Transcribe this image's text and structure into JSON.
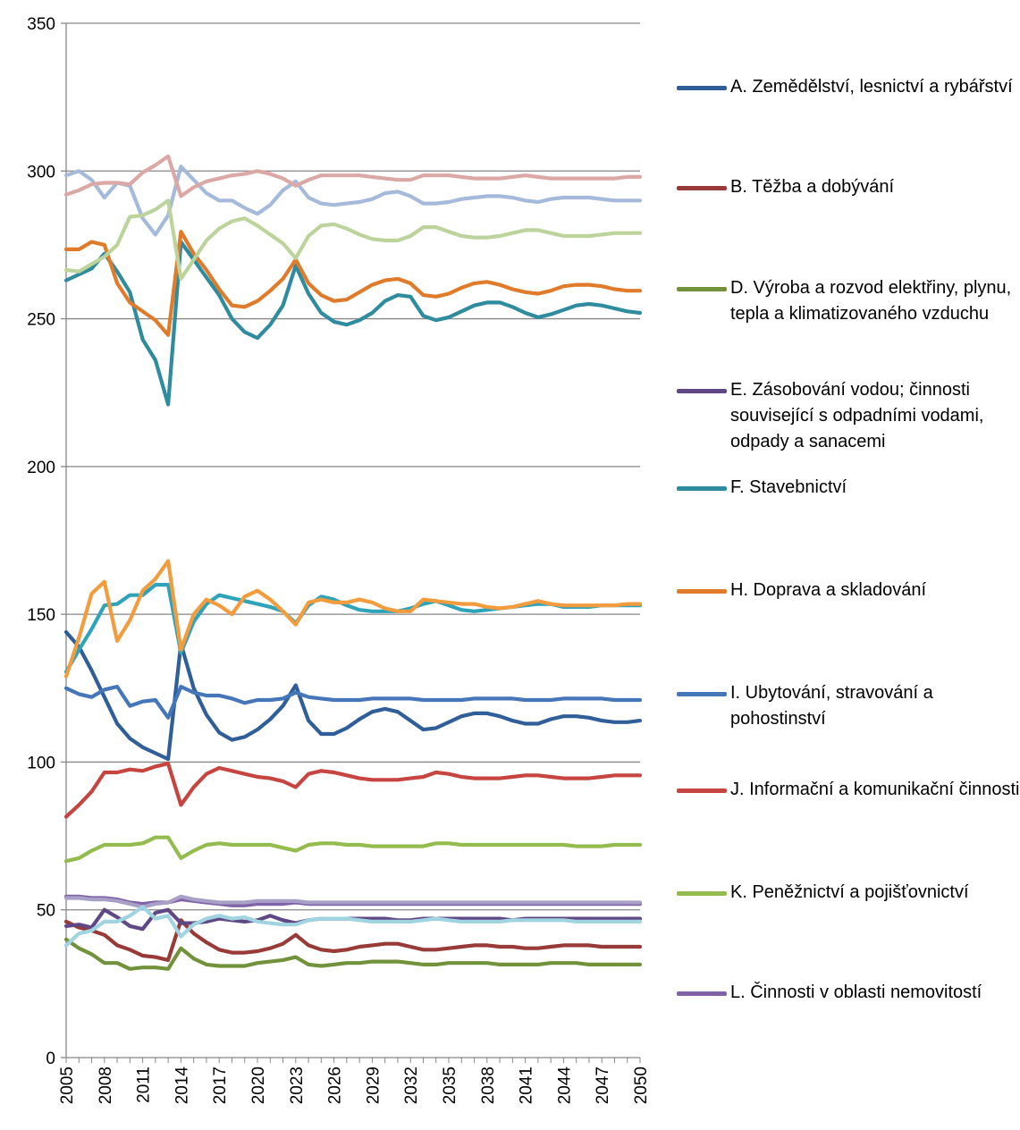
{
  "chart_data": {
    "type": "line",
    "title": "",
    "xlabel": "",
    "ylabel": "",
    "ylim": [
      0,
      350
    ],
    "yticks": [
      0,
      50,
      100,
      150,
      200,
      250,
      300,
      350
    ],
    "x": [
      2005,
      2006,
      2007,
      2008,
      2009,
      2010,
      2011,
      2012,
      2013,
      2014,
      2015,
      2016,
      2017,
      2018,
      2019,
      2020,
      2021,
      2022,
      2023,
      2024,
      2025,
      2026,
      2027,
      2028,
      2029,
      2030,
      2031,
      2032,
      2033,
      2034,
      2035,
      2036,
      2037,
      2038,
      2039,
      2040,
      2041,
      2042,
      2043,
      2044,
      2045,
      2046,
      2047,
      2048,
      2049,
      2050
    ],
    "xtick_labels": [
      2005,
      2008,
      2011,
      2014,
      2017,
      2020,
      2023,
      2026,
      2029,
      2032,
      2035,
      2038,
      2041,
      2044,
      2047,
      2050
    ],
    "grid": "horizontal",
    "legend_position": "right",
    "series": [
      {
        "name": "A. Zemědělství, lesnictví a rybářství",
        "color": "#2f5e98",
        "values": [
          144,
          139,
          131,
          122,
          113,
          108,
          105,
          103,
          101,
          140,
          125,
          116,
          110,
          107.5,
          108.5,
          111,
          114.5,
          119,
          126,
          114,
          109.5,
          109.5,
          111.5,
          114.5,
          117,
          118,
          117,
          114,
          111,
          111.5,
          113.5,
          115.5,
          116.5,
          116.5,
          115.5,
          114,
          113,
          113,
          114.5,
          115.5,
          115.5,
          115,
          114,
          113.5,
          113.5,
          114
        ]
      },
      {
        "name": "B. Těžba a dobývání",
        "color": "#983b38",
        "values": [
          46,
          44,
          43,
          41.5,
          38,
          36.5,
          34.5,
          34,
          33,
          46.5,
          42,
          39,
          36.5,
          35.5,
          35.5,
          36,
          37,
          38.5,
          41.5,
          38,
          36.5,
          36,
          36.5,
          37.5,
          38,
          38.5,
          38.5,
          37.5,
          36.5,
          36.5,
          37,
          37.5,
          38,
          38,
          37.5,
          37.5,
          37,
          37,
          37.5,
          38,
          38,
          38,
          37.5,
          37.5,
          37.5,
          37.5
        ]
      },
      {
        "name": "D. Výroba a rozvod elektřiny, plynu, tepla a klimatizovaného vzduchu",
        "color": "#71923b",
        "values": [
          40,
          37,
          35,
          32,
          32,
          30,
          30.5,
          30.5,
          30,
          37,
          33.5,
          31.5,
          31,
          31,
          31,
          32,
          32.5,
          33,
          34,
          31.5,
          31,
          31.5,
          32,
          32,
          32.5,
          32.5,
          32.5,
          32,
          31.5,
          31.5,
          32,
          32,
          32,
          32,
          31.5,
          31.5,
          31.5,
          31.5,
          32,
          32,
          32,
          31.5,
          31.5,
          31.5,
          31.5,
          31.5
        ]
      },
      {
        "name": "E. Zásobování vodou; činnosti související s odpadními vodami, odpady a sanacemi",
        "color": "#5f4885",
        "values": [
          44.5,
          45,
          44,
          50,
          47.5,
          44.5,
          43.5,
          49,
          50,
          45.5,
          45.5,
          46,
          47,
          46.5,
          46,
          46.5,
          48,
          46.5,
          45.5,
          46.5,
          47,
          47,
          47,
          47,
          47,
          47,
          46.5,
          46.5,
          47,
          47,
          47,
          47,
          47,
          47,
          47,
          46.5,
          47,
          47,
          47,
          47,
          47,
          47,
          47,
          47,
          47,
          47
        ]
      },
      {
        "name": "F. Stavebnictví",
        "color": "#2f8b9e",
        "values": [
          263,
          265,
          267,
          272,
          266,
          259,
          243,
          236,
          221,
          276,
          270,
          264,
          258,
          250,
          245.5,
          243.5,
          248,
          254.5,
          268,
          258.5,
          252,
          249,
          248,
          249.5,
          252,
          256,
          258,
          257.5,
          251,
          249.5,
          250.5,
          252.5,
          254.5,
          255.5,
          255.5,
          254,
          252,
          250.5,
          251.5,
          253,
          254.5,
          255,
          254.5,
          253.5,
          252.5,
          252
        ]
      },
      {
        "name": "H. Doprava a skladování",
        "color": "#df7b2a",
        "values": [
          273.5,
          273.5,
          276,
          275,
          262,
          255.5,
          252.5,
          249.5,
          244.5,
          279.5,
          272,
          266.5,
          260,
          254.5,
          254,
          256,
          259.5,
          263.5,
          270,
          262,
          258,
          256,
          256.5,
          259,
          261.5,
          263,
          263.5,
          262,
          258,
          257.5,
          258.5,
          260.5,
          262,
          262.5,
          261.5,
          260,
          259,
          258.5,
          259.5,
          261,
          261.5,
          261.5,
          261,
          260,
          259.5,
          259.5
        ]
      },
      {
        "name": "I. Ubytování, stravování a pohostinství",
        "color": "#4576b9",
        "values": [
          125,
          123,
          122,
          124.5,
          125.5,
          119,
          120.5,
          121,
          115,
          125.5,
          123.5,
          122.5,
          122.5,
          121.5,
          120,
          121,
          121,
          121.5,
          123.5,
          122,
          121.5,
          121,
          121,
          121,
          121.5,
          121.5,
          121.5,
          121.5,
          121,
          121,
          121,
          121,
          121.5,
          121.5,
          121.5,
          121.5,
          121,
          121,
          121,
          121.5,
          121.5,
          121.5,
          121.5,
          121,
          121,
          121
        ]
      },
      {
        "name": "J. Informační a komunikační činnosti",
        "color": "#c64540",
        "values": [
          81.5,
          85.5,
          90,
          96.5,
          96.5,
          97.5,
          97,
          98.5,
          99.5,
          85.5,
          91.5,
          96,
          98,
          97,
          96,
          95,
          94.5,
          93.5,
          91.5,
          96,
          97,
          96.5,
          95.5,
          94.5,
          94,
          94,
          94,
          94.5,
          95,
          96.5,
          96,
          95,
          94.5,
          94.5,
          94.5,
          95,
          95.5,
          95.5,
          95,
          94.5,
          94.5,
          94.5,
          95,
          95.5,
          95.5,
          95.5
        ]
      },
      {
        "name": "K. Peněžnictví a pojišťovnictví",
        "color": "#93bb4d",
        "values": [
          66.5,
          67.5,
          70,
          72,
          72,
          72,
          72.5,
          74.5,
          74.5,
          67.5,
          70,
          72,
          72.5,
          72,
          72,
          72,
          72,
          71,
          70,
          72,
          72.5,
          72.5,
          72,
          72,
          71.5,
          71.5,
          71.5,
          71.5,
          71.5,
          72.5,
          72.5,
          72,
          72,
          72,
          72,
          72,
          72,
          72,
          72,
          72,
          71.5,
          71.5,
          71.5,
          72,
          72,
          72
        ]
      },
      {
        "name": "L. Činnosti v oblasti nemovitostí",
        "color": "#7f63a6",
        "values": [
          54.5,
          54.5,
          54,
          54,
          53.5,
          52.5,
          52,
          52.5,
          52.5,
          53.5,
          53,
          52.5,
          52,
          51.5,
          51.5,
          52,
          52,
          52,
          52.5,
          52,
          52,
          52,
          52,
          52,
          52,
          52,
          52,
          52,
          52,
          52,
          52,
          52,
          52,
          52,
          52,
          52,
          52,
          52,
          52,
          52,
          52,
          52,
          52,
          52,
          52,
          52
        ]
      },
      {
        "name": "",
        "color": "#2ea3ba",
        "values": [
          130.5,
          138,
          145,
          153,
          153.5,
          156.5,
          156.5,
          160,
          160,
          137,
          147.5,
          153.5,
          156.5,
          155.5,
          154.5,
          153.5,
          152.5,
          151,
          147,
          153,
          156,
          155,
          153,
          151.5,
          151,
          151,
          151,
          152,
          153.5,
          154.5,
          153,
          151.5,
          151,
          151.5,
          152,
          152.5,
          153,
          153.5,
          153.5,
          152.5,
          152.5,
          152.5,
          153,
          153,
          153,
          153
        ]
      },
      {
        "name": "",
        "color": "#f39c3e",
        "values": [
          129,
          142,
          157,
          161,
          141,
          148,
          158,
          162,
          168,
          138,
          150,
          155,
          153,
          150,
          156,
          158,
          155,
          151,
          146.5,
          154,
          155,
          154,
          154,
          155,
          154,
          152,
          151,
          151,
          155,
          154.5,
          154,
          153.5,
          153.5,
          152.5,
          152,
          152.5,
          153.5,
          154.5,
          153.5,
          153,
          153,
          153,
          153,
          153,
          153.5,
          153.5
        ]
      },
      {
        "name": "",
        "color": "#a5b9da",
        "values": [
          298.5,
          300,
          297,
          291,
          296,
          295,
          284,
          278.5,
          285,
          301.5,
          297,
          292.5,
          290,
          290,
          287.5,
          285.5,
          288.5,
          293.5,
          296.5,
          291,
          289,
          288.5,
          289,
          289.5,
          290.5,
          292.5,
          293,
          291.5,
          289,
          289,
          289.5,
          290.5,
          291,
          291.5,
          291.5,
          291,
          290,
          289.5,
          290.5,
          291,
          291,
          291,
          290.5,
          290,
          290,
          290
        ]
      },
      {
        "name": "",
        "color": "#dba8a6",
        "values": [
          292,
          293.5,
          295.5,
          296,
          296,
          295.5,
          299.5,
          302,
          305,
          291.5,
          294.5,
          296.5,
          297.5,
          298.5,
          299,
          300,
          299,
          297.5,
          295,
          297,
          298.5,
          298.5,
          298.5,
          298.5,
          298,
          297.5,
          297,
          297,
          298.5,
          298.5,
          298.5,
          298,
          297.5,
          297.5,
          297.5,
          298,
          298.5,
          298,
          297.5,
          297.5,
          297.5,
          297.5,
          297.5,
          297.5,
          298,
          298
        ]
      },
      {
        "name": "",
        "color": "#bcd49c",
        "values": [
          266.5,
          266,
          268.5,
          271,
          275,
          284.5,
          285,
          287,
          290,
          263.5,
          270,
          276.5,
          280.5,
          283,
          284,
          281.5,
          278.5,
          275.5,
          270.5,
          278,
          281.5,
          282,
          280.5,
          278.5,
          277,
          276.5,
          276.5,
          278,
          281,
          281,
          279.5,
          278,
          277.5,
          277.5,
          278,
          279,
          280,
          280,
          279,
          278,
          278,
          278,
          278.5,
          279,
          279,
          279
        ]
      },
      {
        "name": "",
        "color": "#a9a0c8",
        "values": [
          54,
          54,
          53.5,
          53.5,
          53,
          52,
          51,
          52,
          52.5,
          54.5,
          53.5,
          53,
          52.5,
          52.5,
          52.5,
          53,
          53,
          53,
          53,
          52.5,
          52.5,
          52.5,
          52.5,
          52.5,
          52.5,
          52.5,
          52.5,
          52.5,
          52.5,
          52.5,
          52.5,
          52.5,
          52.5,
          52.5,
          52.5,
          52.5,
          52.5,
          52.5,
          52.5,
          52.5,
          52.5,
          52.5,
          52.5,
          52.5,
          52.5,
          52.5
        ]
      },
      {
        "name": "",
        "color": "#9fd4e0",
        "values": [
          38,
          42,
          43,
          46,
          46,
          48,
          51,
          47,
          48,
          41,
          45,
          47,
          48,
          47,
          47.5,
          46,
          45.5,
          45,
          45,
          46.5,
          47,
          47,
          47,
          46.5,
          46,
          46,
          46,
          46,
          46.5,
          47,
          46.5,
          46,
          46,
          46,
          46,
          46.5,
          46.5,
          46.5,
          46.5,
          46.5,
          46,
          46,
          46,
          46,
          46,
          46
        ]
      }
    ]
  }
}
